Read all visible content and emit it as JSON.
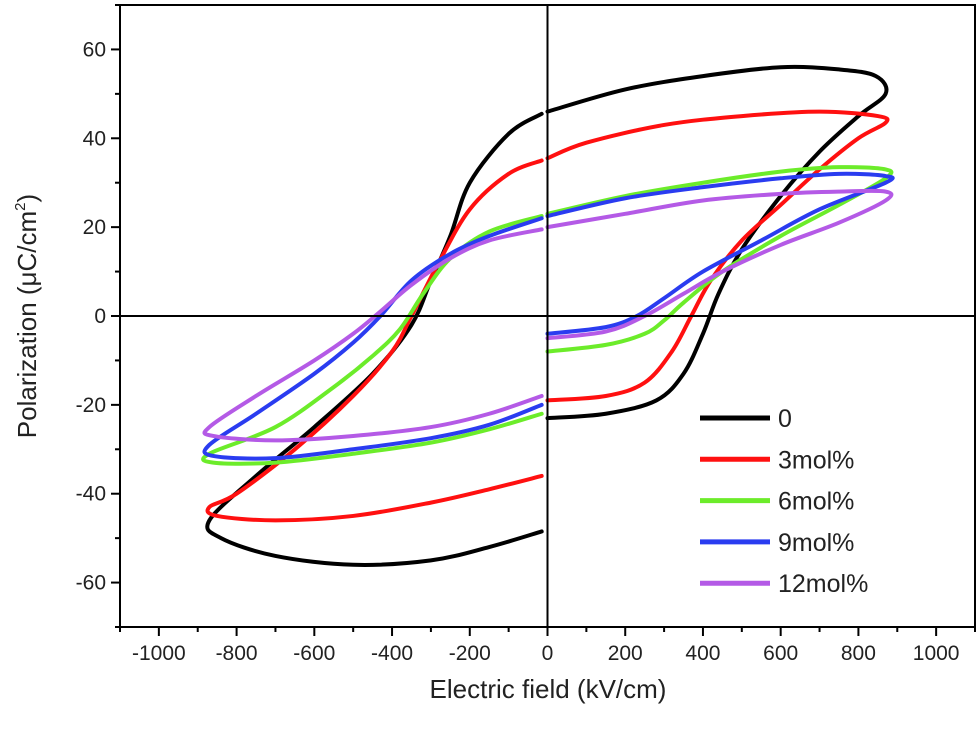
{
  "chart_data": {
    "type": "line",
    "title": "",
    "xlabel": "Electric field (kV/cm)",
    "ylabel": "Polarization (μC/cm",
    "ylabel_sup": "2",
    "ylabel_end": ")",
    "xlim": [
      -1100,
      1100
    ],
    "ylim": [
      -70,
      70
    ],
    "xticks": [
      -1000,
      -800,
      -600,
      -400,
      -200,
      0,
      200,
      400,
      600,
      800,
      1000
    ],
    "yticks": [
      -60,
      -40,
      -20,
      0,
      20,
      40,
      60
    ],
    "grid": false,
    "zero_lines": true,
    "legend_position": "bottom-right",
    "series": [
      {
        "name": "0",
        "color": "#000000",
        "segments": [
          [
            [
              0,
              -23
            ],
            [
              150,
              -22
            ],
            [
              280,
              -19
            ],
            [
              350,
              -13
            ],
            [
              400,
              -4
            ],
            [
              440,
              5
            ],
            [
              500,
              15
            ],
            [
              600,
              27
            ],
            [
              700,
              37
            ],
            [
              800,
              45
            ],
            [
              870,
              50
            ],
            [
              845,
              54
            ],
            [
              750,
              55.5
            ],
            [
              600,
              56
            ],
            [
              400,
              54
            ],
            [
              200,
              51
            ],
            [
              0,
              46
            ]
          ],
          [
            [
              -15,
              45.5
            ],
            [
              -100,
              41
            ],
            [
              -200,
              30
            ],
            [
              -250,
              18
            ],
            [
              -300,
              8
            ],
            [
              -350,
              -2
            ],
            [
              -450,
              -13
            ],
            [
              -600,
              -25
            ],
            [
              -750,
              -36
            ],
            [
              -870,
              -46
            ],
            [
              -840,
              -50
            ],
            [
              -700,
              -54
            ],
            [
              -500,
              -56
            ],
            [
              -300,
              -55
            ],
            [
              -150,
              -52
            ],
            [
              -15,
              -48.5
            ]
          ]
        ]
      },
      {
        "name": "3mol%",
        "color": "#ff1010",
        "segments": [
          [
            [
              0,
              -19
            ],
            [
              150,
              -18
            ],
            [
              250,
              -15
            ],
            [
              320,
              -8
            ],
            [
              370,
              0
            ],
            [
              420,
              8
            ],
            [
              500,
              17
            ],
            [
              600,
              25
            ],
            [
              700,
              33
            ],
            [
              800,
              40
            ],
            [
              870,
              43.5
            ],
            [
              850,
              45
            ],
            [
              700,
              46
            ],
            [
              500,
              45
            ],
            [
              300,
              43
            ],
            [
              100,
              39
            ],
            [
              0,
              35.5
            ]
          ],
          [
            [
              -15,
              35
            ],
            [
              -100,
              32
            ],
            [
              -200,
              24
            ],
            [
              -280,
              12
            ],
            [
              -350,
              0
            ],
            [
              -400,
              -8
            ],
            [
              -500,
              -18
            ],
            [
              -650,
              -30
            ],
            [
              -800,
              -40
            ],
            [
              -870,
              -43
            ],
            [
              -850,
              -45
            ],
            [
              -700,
              -46
            ],
            [
              -500,
              -45
            ],
            [
              -300,
              -42
            ],
            [
              -150,
              -39
            ],
            [
              -15,
              -36
            ]
          ]
        ]
      },
      {
        "name": "6mol%",
        "color": "#6cec2a",
        "segments": [
          [
            [
              0,
              -8
            ],
            [
              150,
              -6.5
            ],
            [
              250,
              -4
            ],
            [
              300,
              -1
            ],
            [
              350,
              3
            ],
            [
              450,
              10
            ],
            [
              600,
              18
            ],
            [
              750,
              25
            ],
            [
              870,
              31
            ],
            [
              870,
              33
            ],
            [
              750,
              33.5
            ],
            [
              600,
              32.5
            ],
            [
              400,
              30
            ],
            [
              200,
              27
            ],
            [
              0,
              23
            ]
          ],
          [
            [
              -15,
              22.5
            ],
            [
              -150,
              19
            ],
            [
              -250,
              13
            ],
            [
              -320,
              5
            ],
            [
              -380,
              -3
            ],
            [
              -450,
              -9
            ],
            [
              -550,
              -16
            ],
            [
              -700,
              -25
            ],
            [
              -870,
              -31
            ],
            [
              -860,
              -33
            ],
            [
              -700,
              -33
            ],
            [
              -500,
              -31
            ],
            [
              -300,
              -28.5
            ],
            [
              -150,
              -25.5
            ],
            [
              -15,
              -22
            ]
          ]
        ]
      },
      {
        "name": "9mol%",
        "color": "#2a3cf0",
        "segments": [
          [
            [
              0,
              -4
            ],
            [
              150,
              -2.5
            ],
            [
              230,
              0
            ],
            [
              300,
              4
            ],
            [
              400,
              10
            ],
            [
              550,
              17
            ],
            [
              700,
              24
            ],
            [
              870,
              30
            ],
            [
              870,
              31.5
            ],
            [
              750,
              32
            ],
            [
              600,
              31
            ],
            [
              400,
              29
            ],
            [
              200,
              26.5
            ],
            [
              0,
              22.5
            ]
          ],
          [
            [
              -15,
              22
            ],
            [
              -150,
              18
            ],
            [
              -250,
              14
            ],
            [
              -350,
              8
            ],
            [
              -430,
              0
            ],
            [
              -500,
              -6
            ],
            [
              -600,
              -13
            ],
            [
              -750,
              -22
            ],
            [
              -870,
              -29
            ],
            [
              -860,
              -31.5
            ],
            [
              -700,
              -32
            ],
            [
              -500,
              -30
            ],
            [
              -300,
              -27.5
            ],
            [
              -150,
              -24.5
            ],
            [
              -15,
              -20
            ]
          ]
        ]
      },
      {
        "name": "12mol%",
        "color": "#b45ae6",
        "segments": [
          [
            [
              0,
              -5
            ],
            [
              150,
              -3.5
            ],
            [
              250,
              0
            ],
            [
              350,
              5
            ],
            [
              450,
              10
            ],
            [
              600,
              16
            ],
            [
              750,
              21
            ],
            [
              870,
              26
            ],
            [
              870,
              28
            ],
            [
              750,
              28
            ],
            [
              600,
              27.5
            ],
            [
              400,
              26
            ],
            [
              200,
              23
            ],
            [
              0,
              20
            ]
          ],
          [
            [
              -15,
              19.5
            ],
            [
              -150,
              17
            ],
            [
              -250,
              13
            ],
            [
              -350,
              7
            ],
            [
              -430,
              1
            ],
            [
              -500,
              -4
            ],
            [
              -600,
              -10
            ],
            [
              -750,
              -18
            ],
            [
              -870,
              -25
            ],
            [
              -860,
              -27
            ],
            [
              -700,
              -28
            ],
            [
              -500,
              -27
            ],
            [
              -300,
              -25
            ],
            [
              -150,
              -22
            ],
            [
              -15,
              -18
            ]
          ]
        ]
      }
    ]
  }
}
